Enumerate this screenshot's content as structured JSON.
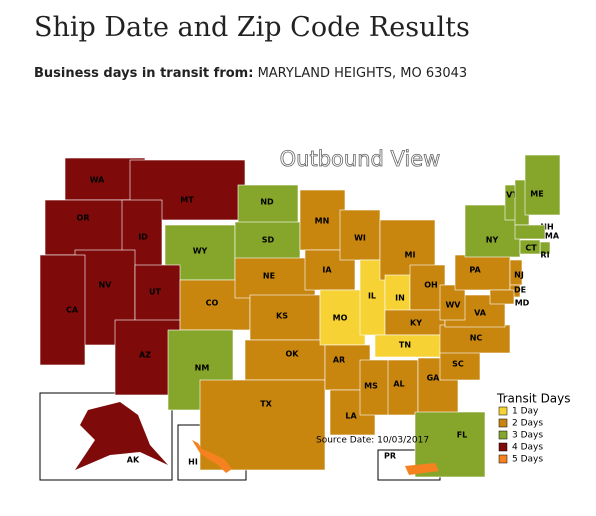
{
  "header": {
    "title": "Ship Date and Zip Code Results",
    "subtitle_label": "Business days in transit from:",
    "origin": "MARYLAND HEIGHTS, MO 63043"
  },
  "map": {
    "title": "Outbound View",
    "source_date": "Source Date: 10/03/2017",
    "legend": {
      "title": "Transit Days",
      "items": [
        {
          "label": "1 Day",
          "color": "#f6d234"
        },
        {
          "label": "2 Days",
          "color": "#c8860f"
        },
        {
          "label": "3 Days",
          "color": "#86a62b"
        },
        {
          "label": "4 Days",
          "color": "#7e0a0a"
        },
        {
          "label": "5 Days",
          "color": "#f5821f"
        }
      ]
    },
    "states": [
      {
        "label": "WA",
        "color": "#7e0a0a"
      },
      {
        "label": "OR",
        "color": "#7e0a0a"
      },
      {
        "label": "MT",
        "color": "#7e0a0a"
      },
      {
        "label": "ID",
        "color": "#7e0a0a"
      },
      {
        "label": "WY",
        "color": "#86a62b"
      },
      {
        "label": "NV",
        "color": "#7e0a0a"
      },
      {
        "label": "UT",
        "color": "#7e0a0a"
      },
      {
        "label": "CA",
        "color": "#7e0a0a"
      },
      {
        "label": "AZ",
        "color": "#7e0a0a"
      },
      {
        "label": "CO",
        "color": "#c8860f"
      },
      {
        "label": "NM",
        "color": "#86a62b"
      },
      {
        "label": "ND",
        "color": "#86a62b"
      },
      {
        "label": "SD",
        "color": "#86a62b"
      },
      {
        "label": "NE",
        "color": "#c8860f"
      },
      {
        "label": "KS",
        "color": "#c8860f"
      },
      {
        "label": "OK",
        "color": "#c8860f"
      },
      {
        "label": "TX",
        "color": "#c8860f"
      },
      {
        "label": "MN",
        "color": "#c8860f"
      },
      {
        "label": "IA",
        "color": "#c8860f"
      },
      {
        "label": "MO",
        "color": "#f6d234"
      },
      {
        "label": "AR",
        "color": "#c8860f"
      },
      {
        "label": "LA",
        "color": "#c8860f"
      },
      {
        "label": "WI",
        "color": "#c8860f"
      },
      {
        "label": "IL",
        "color": "#f6d234"
      },
      {
        "label": "MI",
        "color": "#c8860f"
      },
      {
        "label": "IN",
        "color": "#f6d234"
      },
      {
        "label": "OH",
        "color": "#c8860f"
      },
      {
        "label": "KY",
        "color": "#c8860f"
      },
      {
        "label": "TN",
        "color": "#f6d234"
      },
      {
        "label": "MS",
        "color": "#c8860f"
      },
      {
        "label": "AL",
        "color": "#c8860f"
      },
      {
        "label": "GA",
        "color": "#c8860f"
      },
      {
        "label": "FL",
        "color": "#86a62b"
      },
      {
        "label": "SC",
        "color": "#c8860f"
      },
      {
        "label": "NC",
        "color": "#c8860f"
      },
      {
        "label": "VA",
        "color": "#c8860f"
      },
      {
        "label": "WV",
        "color": "#c8860f"
      },
      {
        "label": "PA",
        "color": "#c8860f"
      },
      {
        "label": "NY",
        "color": "#86a62b"
      },
      {
        "label": "VT",
        "color": "#86a62b"
      },
      {
        "label": "NH",
        "color": "#86a62b"
      },
      {
        "label": "ME",
        "color": "#86a62b"
      },
      {
        "label": "MA",
        "color": "#86a62b"
      },
      {
        "label": "RI",
        "color": "#86a62b"
      },
      {
        "label": "CT",
        "color": "#86a62b"
      },
      {
        "label": "NJ",
        "color": "#c8860f"
      },
      {
        "label": "DE",
        "color": "#c8860f"
      },
      {
        "label": "MD",
        "color": "#c8860f"
      },
      {
        "label": "AK",
        "color": "#7e0a0a"
      },
      {
        "label": "HI",
        "color": "#f5821f"
      },
      {
        "label": "PR",
        "color": "#f5821f"
      }
    ]
  }
}
